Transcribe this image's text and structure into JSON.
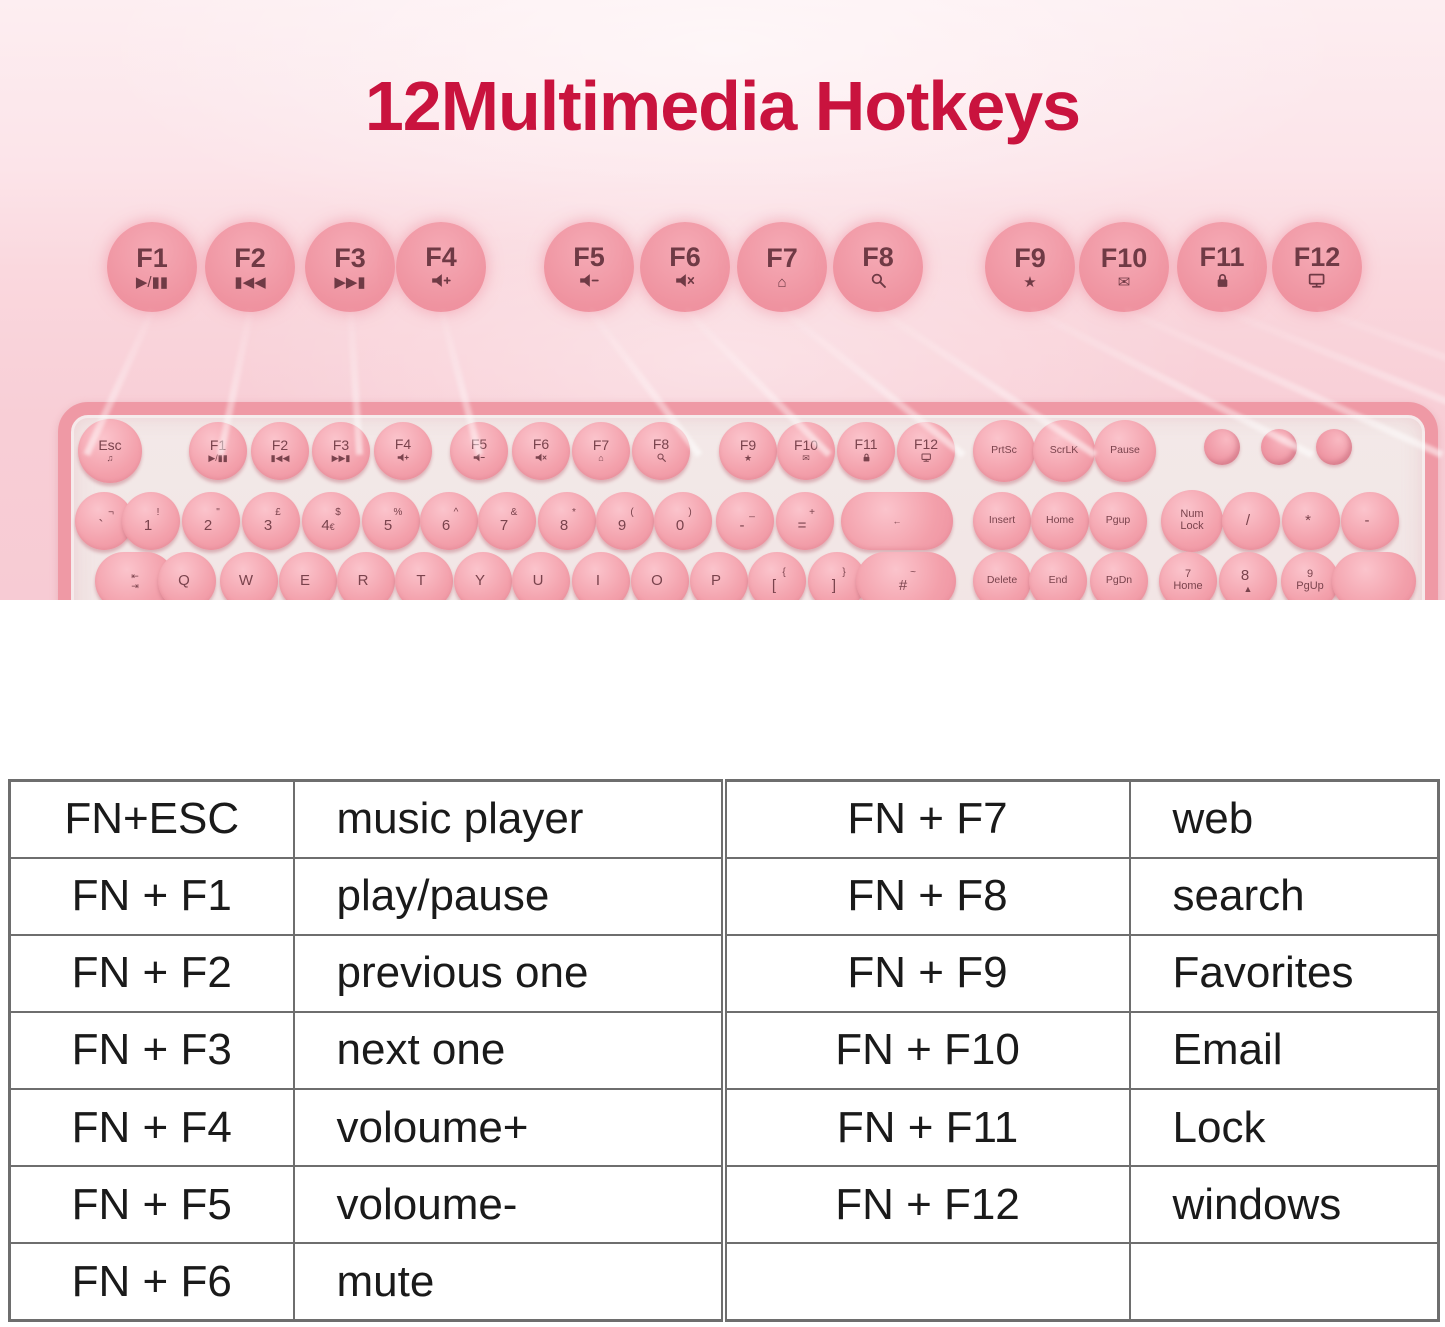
{
  "title": "12Multimedia Hotkeys",
  "colors": {
    "title_red": "#c9133e",
    "background_pink": "#f8ced6",
    "key_pink": "#f29ca8",
    "key_text": "#7a434d",
    "keyboard_frame": "#ef99a5",
    "keyboard_deck": "#f2e8e8",
    "table_border": "#6e6e6e",
    "table_text": "#1a1a1a"
  },
  "floating_keys": [
    {
      "label": "F1",
      "icon": "play-pause-icon"
    },
    {
      "label": "F2",
      "icon": "previous-track-icon"
    },
    {
      "label": "F3",
      "icon": "next-track-icon"
    },
    {
      "label": "F4",
      "icon": "volume-up-icon"
    },
    {
      "label": "F5",
      "icon": "volume-down-icon"
    },
    {
      "label": "F6",
      "icon": "mute-icon"
    },
    {
      "label": "F7",
      "icon": "home-icon"
    },
    {
      "label": "F8",
      "icon": "search-icon"
    },
    {
      "label": "F9",
      "icon": "favorites-star-icon"
    },
    {
      "label": "F10",
      "icon": "email-icon"
    },
    {
      "label": "F11",
      "icon": "lock-icon"
    },
    {
      "label": "F12",
      "icon": "windows-monitor-icon"
    }
  ],
  "keyboard": {
    "row1": [
      {
        "name": "esc",
        "label": "Esc",
        "icon": "music-note-icon"
      },
      {
        "name": "f1",
        "label": "F1",
        "icon": "play-pause-icon"
      },
      {
        "name": "f2",
        "label": "F2",
        "icon": "previous-track-icon"
      },
      {
        "name": "f3",
        "label": "F3",
        "icon": "next-track-icon"
      },
      {
        "name": "f4",
        "label": "F4",
        "icon": "volume-up-icon"
      },
      {
        "name": "f5",
        "label": "F5",
        "icon": "volume-down-icon"
      },
      {
        "name": "f6",
        "label": "F6",
        "icon": "mute-icon"
      },
      {
        "name": "f7",
        "label": "F7",
        "icon": "home-icon"
      },
      {
        "name": "f8",
        "label": "F8",
        "icon": "search-icon"
      },
      {
        "name": "f9",
        "label": "F9",
        "icon": "favorites-star-icon"
      },
      {
        "name": "f10",
        "label": "F10",
        "icon": "email-icon"
      },
      {
        "name": "f11",
        "label": "F11",
        "icon": "lock-icon"
      },
      {
        "name": "f12",
        "label": "F12",
        "icon": "windows-monitor-icon"
      },
      {
        "name": "prtsc",
        "label": "PrtSc",
        "small": true
      },
      {
        "name": "scrlk",
        "label": "ScrLK",
        "small": true
      },
      {
        "name": "pause",
        "label": "Pause",
        "small": true
      }
    ],
    "knobs": [
      "control-knob",
      "control-knob",
      "control-knob"
    ],
    "row2": [
      {
        "name": "backtick",
        "top": "¬",
        "main": "`"
      },
      {
        "name": "1",
        "top": "!",
        "main": "1"
      },
      {
        "name": "2",
        "top": "\"",
        "main": "2"
      },
      {
        "name": "3",
        "top": "£",
        "main": "3"
      },
      {
        "name": "4",
        "top": "$",
        "main": "4",
        "sub": "€"
      },
      {
        "name": "5",
        "top": "%",
        "main": "5"
      },
      {
        "name": "6",
        "top": "^",
        "main": "6"
      },
      {
        "name": "7",
        "top": "&",
        "main": "7"
      },
      {
        "name": "8",
        "top": "*",
        "main": "8"
      },
      {
        "name": "9",
        "top": "(",
        "main": "9"
      },
      {
        "name": "0",
        "top": ")",
        "main": "0"
      },
      {
        "name": "minus",
        "top": "_",
        "main": "-"
      },
      {
        "name": "equals",
        "top": "+",
        "main": "="
      },
      {
        "name": "backspace",
        "icon": "backspace-arrow-icon",
        "pill": true
      },
      {
        "name": "insert",
        "label": "Insert",
        "small": true
      },
      {
        "name": "home",
        "label": "Home",
        "small": true
      },
      {
        "name": "pgup",
        "label": "Pgup",
        "small": true
      },
      {
        "name": "num-lock",
        "lines": [
          "Num",
          "Lock"
        ]
      },
      {
        "name": "numpad-slash",
        "main": "/"
      },
      {
        "name": "numpad-asterisk",
        "main": "*"
      },
      {
        "name": "numpad-minus",
        "main": "-"
      }
    ],
    "row3": [
      {
        "name": "tab",
        "icon": "tab-arrows-icon",
        "pill": true
      },
      {
        "name": "q",
        "main": "Q"
      },
      {
        "name": "w",
        "main": "W"
      },
      {
        "name": "e",
        "main": "E"
      },
      {
        "name": "r",
        "main": "R"
      },
      {
        "name": "t",
        "main": "T"
      },
      {
        "name": "y",
        "main": "Y"
      },
      {
        "name": "u",
        "main": "U"
      },
      {
        "name": "i",
        "main": "I"
      },
      {
        "name": "o",
        "main": "O"
      },
      {
        "name": "p",
        "main": "P"
      },
      {
        "name": "bracket-left",
        "top": "{",
        "main": "["
      },
      {
        "name": "bracket-right",
        "top": "}",
        "main": "]"
      },
      {
        "name": "hash",
        "top": "~",
        "main": "#",
        "pill": true
      },
      {
        "name": "delete",
        "label": "Delete",
        "small": true
      },
      {
        "name": "end",
        "label": "End",
        "small": true
      },
      {
        "name": "pgdn",
        "label": "PgDn",
        "small": true
      },
      {
        "name": "numpad-7",
        "lines": [
          "7",
          "Home"
        ]
      },
      {
        "name": "numpad-8",
        "main": "8",
        "icon": "up-arrow-icon"
      },
      {
        "name": "numpad-9",
        "lines": [
          "9",
          "PgUp"
        ]
      },
      {
        "name": "blank",
        "pill": true
      }
    ]
  },
  "table": {
    "left_rows": [
      {
        "key": "FN+ESC",
        "value": "music player"
      },
      {
        "key": "FN + F1",
        "value": "play/pause"
      },
      {
        "key": "FN + F2",
        "value": "previous one"
      },
      {
        "key": "FN + F3",
        "value": "next one"
      },
      {
        "key": "FN + F4",
        "value": "voloume+"
      },
      {
        "key": "FN + F5",
        "value": "voloume-"
      },
      {
        "key": "FN + F6",
        "value": "mute"
      }
    ],
    "right_rows": [
      {
        "key": "FN + F7",
        "value": "web"
      },
      {
        "key": "FN + F8",
        "value": "search"
      },
      {
        "key": "FN + F9",
        "value": "Favorites"
      },
      {
        "key": "FN + F10",
        "value": "Email"
      },
      {
        "key": "FN + F11",
        "value": "Lock"
      },
      {
        "key": "FN + F12",
        "value": "windows"
      },
      {
        "key": "",
        "value": ""
      }
    ]
  }
}
